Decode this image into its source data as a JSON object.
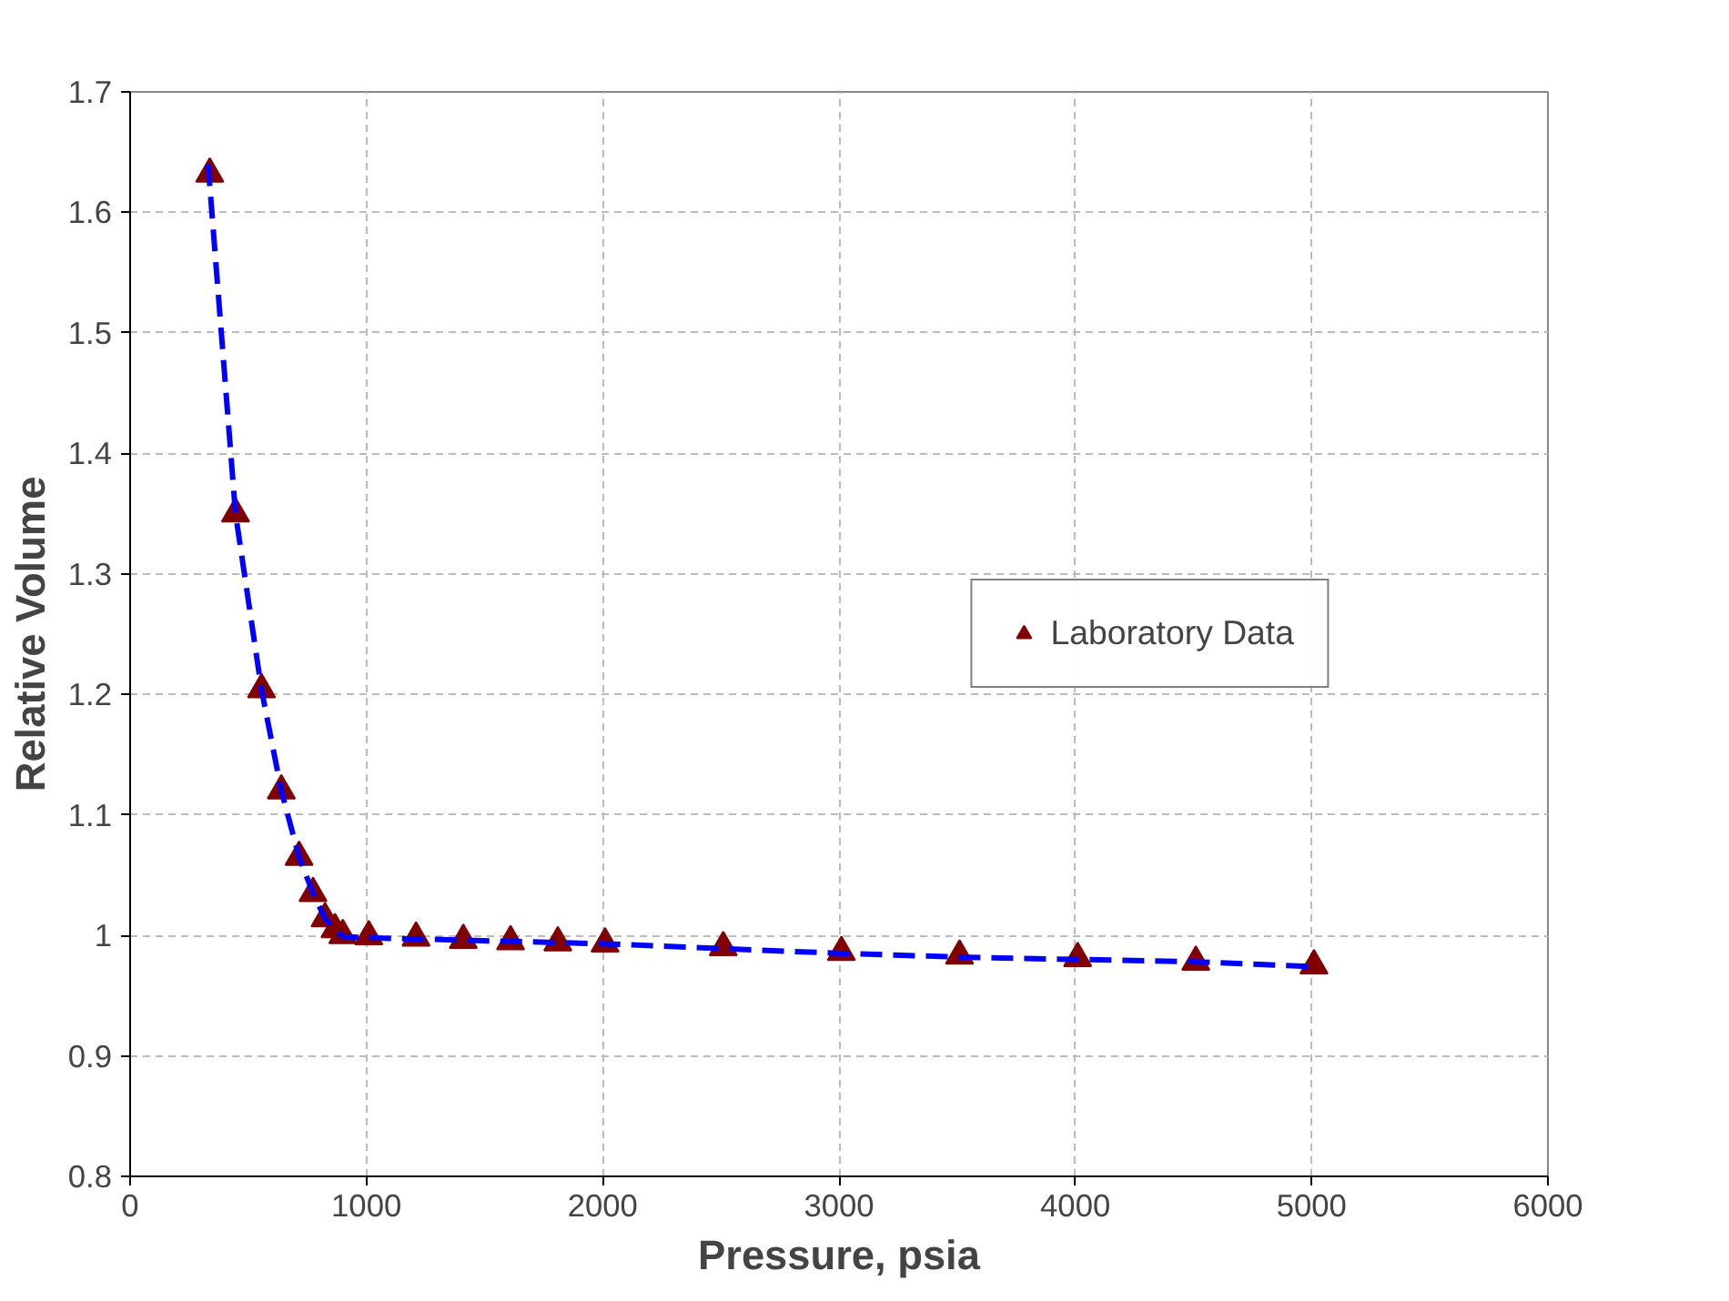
{
  "chart_data": {
    "type": "scatter",
    "xlabel": "Pressure, psia",
    "ylabel": "Relative Volume",
    "xlim": [
      0,
      6000
    ],
    "xticks": [
      0,
      1000,
      2000,
      3000,
      4000,
      5000,
      6000
    ],
    "ylim": [
      0.8,
      1.7
    ],
    "yticks": [
      0.8,
      0.9,
      1,
      1.1,
      1.2,
      1.3,
      1.4,
      1.5,
      1.6,
      1.7
    ],
    "grid": true,
    "legend": "right",
    "series": [
      {
        "name": "Laboratory Data",
        "marker": "triangle",
        "color": "#800000",
        "x": [
          337,
          446,
          556,
          640,
          715,
          774,
          825,
          867,
          900,
          1010,
          1210,
          1410,
          1610,
          1810,
          2010,
          2510,
          3010,
          3510,
          4010,
          4510,
          5010
        ],
        "values": [
          1.632,
          1.35,
          1.204,
          1.12,
          1.065,
          1.035,
          1.014,
          1.005,
          1.0,
          0.999,
          0.998,
          0.996,
          0.995,
          0.994,
          0.993,
          0.99,
          0.986,
          0.983,
          0.981,
          0.978,
          0.975
        ]
      },
      {
        "type": "line",
        "line_style": "dashed",
        "color": "#0000ff",
        "x": [
          330,
          446,
          556,
          640,
          715,
          774,
          825,
          867,
          900,
          1010,
          1210,
          1410,
          1610,
          1810,
          2010,
          2510,
          3010,
          3510,
          4010,
          4510,
          5010
        ],
        "values": [
          1.64,
          1.35,
          1.204,
          1.12,
          1.065,
          1.035,
          1.014,
          1.004,
          0.999,
          0.998,
          0.997,
          0.996,
          0.995,
          0.994,
          0.993,
          0.989,
          0.985,
          0.982,
          0.98,
          0.978,
          0.974
        ]
      }
    ]
  }
}
